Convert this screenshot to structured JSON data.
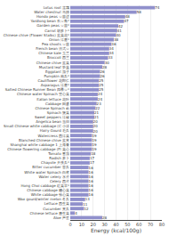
{
  "chart_data": {
    "type": "bar",
    "orientation": "horizontal",
    "xlabel": "Energy (kcal/100g)",
    "categories": [
      "Lotus root 莲藕",
      "Water chestnut 马蹄",
      "Hondo peas 豆苗进",
      "Yardlong bean 长豆角*",
      "Garden peas 豆苗*",
      "Carrot 胡萝卜*",
      "Chinese chive (Flower Stalks) 韭菜花*",
      "Onion 洋葱*",
      "Pea shoots 豆苗",
      "French bean 法式豆",
      "Chinese kale 玉兰",
      "Broccoli 西兰",
      "Chinese chive 韭菜",
      "Mustard leaf 笋菜",
      "Eggplant 茄子",
      "Pumpkin 南瓜*",
      "Cauliflower 花郎仁",
      "Asparagus 洋葱*",
      "Salted Chinese Runner Bean 四季豆*",
      "Chinese water Spinach 空心菜",
      "Italian lettuce 花叶",
      "Cabbage 田婆",
      "Chinese Spinach 莉",
      "Spinach 菠菜",
      "Sweet peppers 洋椒",
      "Angelica bean 当归",
      "Small Chinese white cabbage (C 小沫",
      "Hairy Gourd 毛瓜",
      "Watercress 西洋菜",
      "Blanched Chinese chive 韭黄",
      "Shanghai white cabbage 1 上海青",
      "Chinese flowering cabbage (Fl 菜心",
      "Tomato 番茄",
      "Radish 萝卜",
      "Chayote 天佚瓜*",
      "Bitter cucumber 苦瓜",
      "White water Spinach 白蒋",
      "Water celery 水芹",
      "Celery 西芹",
      "Hong Choi cabbage 红菜苹*",
      "Chinese cabbage 糖心菜",
      "White cabbage 张心菜",
      "Wax gourd/winter melon 冬瓜",
      "Lettuce 西生菜",
      "Cucumber 黄瓜",
      "Chinese lettuce 唐生菜",
      "Aloe 芦荟"
    ],
    "values": [
      74,
      58,
      48,
      47,
      42,
      41,
      40,
      38,
      36,
      34,
      34,
      33,
      30,
      28,
      26,
      26,
      25,
      25,
      25,
      24,
      24,
      23,
      22,
      21,
      21,
      20,
      20,
      20,
      19,
      19,
      19,
      19,
      18,
      17,
      17,
      16,
      16,
      16,
      16,
      16,
      16,
      16,
      13,
      11,
      12,
      4,
      28
    ],
    "color": "#9090cc",
    "xlim": [
      0,
      80
    ],
    "xticks": [
      0,
      10,
      20,
      30,
      40,
      50,
      60,
      70,
      80
    ],
    "grid": true,
    "data_labels": true
  }
}
